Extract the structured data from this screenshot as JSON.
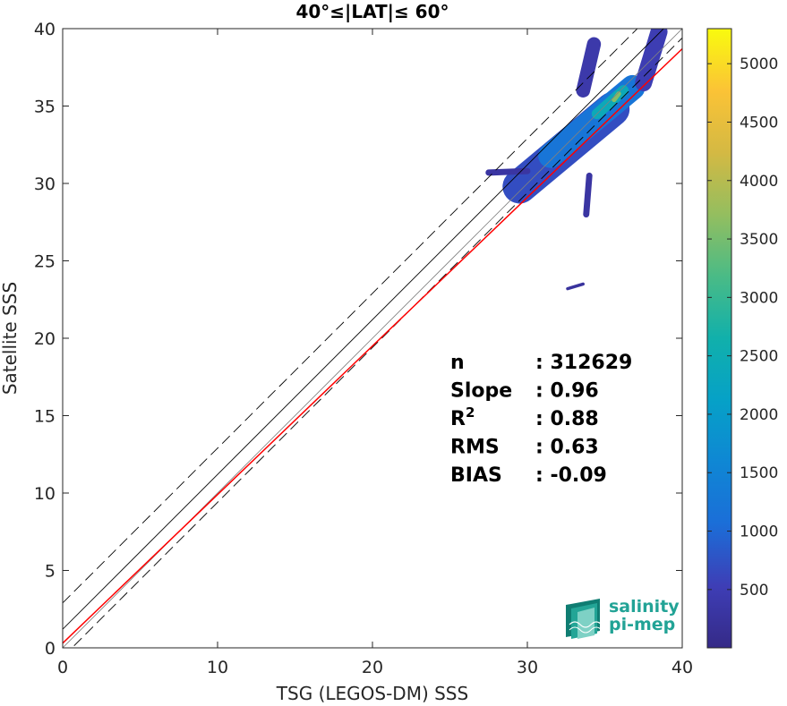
{
  "chart_data": {
    "type": "heatmap",
    "title": "40°≤|LAT|≤ 60°",
    "xlabel": "TSG (LEGOS-DM) SSS",
    "ylabel": "Satellite SSS",
    "xlim": [
      0,
      40
    ],
    "ylim": [
      0,
      40
    ],
    "x_ticks": [
      "0",
      "10",
      "20",
      "30",
      "40"
    ],
    "y_ticks": [
      "0",
      "5",
      "10",
      "15",
      "20",
      "25",
      "30",
      "35",
      "40"
    ],
    "grid": false,
    "colormap": "parula",
    "colorbar": {
      "range": [
        1,
        5300
      ],
      "ticks": [
        "500",
        "1000",
        "1500",
        "2000",
        "2500",
        "3000",
        "3500",
        "4000",
        "4500",
        "5000"
      ]
    },
    "reference_lines": {
      "one_to_one": {
        "intercept": 0,
        "slope": 1,
        "color": "#808080",
        "style": "solid"
      },
      "fit": {
        "intercept": 0.3,
        "slope": 0.96,
        "color": "#ff0000",
        "style": "solid"
      },
      "offsets": [
        {
          "intercept": 1.2,
          "slope": 1,
          "color": "#000000",
          "style": "solid"
        },
        {
          "intercept": 2.9,
          "slope": 1,
          "color": "#000000",
          "style": "dashed"
        },
        {
          "intercept": -0.6,
          "slope": 1,
          "color": "#000000",
          "style": "dashed"
        }
      ]
    },
    "density_regions": [
      {
        "x0": 29.5,
        "y0": 29.8,
        "x1": 35.5,
        "y1": 34.8,
        "level": 700,
        "width": 2.2
      },
      {
        "x0": 31.5,
        "y0": 31.8,
        "x1": 36.8,
        "y1": 36.2,
        "level": 1200,
        "width": 1.6
      },
      {
        "x0": 34.5,
        "y0": 34.5,
        "x1": 36.2,
        "y1": 36.0,
        "level": 2400,
        "width": 0.7
      },
      {
        "x0": 35.6,
        "y0": 35.4,
        "x1": 35.9,
        "y1": 35.8,
        "level": 3600,
        "width": 0.3
      },
      {
        "x0": 33.6,
        "y0": 36.0,
        "x1": 34.3,
        "y1": 39.0,
        "level": 400,
        "width": 0.9
      },
      {
        "x0": 37.5,
        "y0": 36.5,
        "x1": 38.5,
        "y1": 39.8,
        "level": 500,
        "width": 1.1
      },
      {
        "x0": 27.5,
        "y0": 30.7,
        "x1": 30.0,
        "y1": 30.8,
        "level": 300,
        "width": 0.4
      },
      {
        "x0": 33.8,
        "y0": 28.0,
        "x1": 34.0,
        "y1": 30.5,
        "level": 300,
        "width": 0.4
      },
      {
        "x0": 32.6,
        "y0": 23.2,
        "x1": 33.6,
        "y1": 23.5,
        "level": 250,
        "width": 0.2
      }
    ],
    "stats": [
      {
        "label": "n",
        "value": ": 312629"
      },
      {
        "label": "Slope",
        "value": ": 0.96"
      },
      {
        "label": "R",
        "superscript": "2",
        "value": ": 0.88"
      },
      {
        "label": "RMS",
        "value": ": 0.63"
      },
      {
        "label": "BIAS",
        "value": ": -0.09"
      }
    ]
  },
  "logo": {
    "line1": "salinity",
    "line2": "pi-mep"
  }
}
